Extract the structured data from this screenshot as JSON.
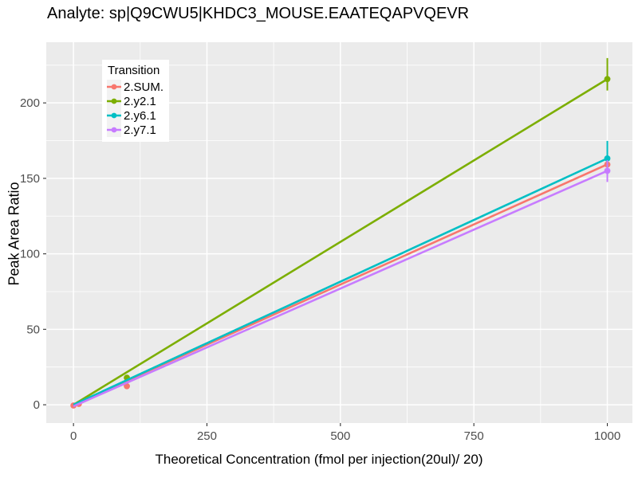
{
  "chart_data": {
    "type": "line",
    "title": "Analyte: sp|Q9CWU5|KHDC3_MOUSE.EAATEQAPVQEVR",
    "xlabel": "Theoretical Concentration (fmol per injection(20ul)/ 20)",
    "ylabel": "Peak Area Ratio",
    "legend_title": "Transition",
    "legend_position": "top-left-inside",
    "grid": "white major+minor on grey panel",
    "panel_color": "#EBEBEB",
    "gridline_color": "#FFFFFF",
    "tick_label_color": "#4D4D4D",
    "tick_mark_color": "#333333",
    "xlim": [
      -51,
      1047
    ],
    "ylim": [
      -12.1,
      240.2
    ],
    "x_ticks": [
      0,
      250,
      500,
      750,
      1000
    ],
    "y_ticks": [
      0,
      50,
      100,
      150,
      200
    ],
    "x_minor_ticks": [
      125,
      375,
      625,
      875
    ],
    "y_minor_ticks": [
      25,
      75,
      125,
      175,
      225
    ],
    "series": [
      {
        "name": "2.SUM.",
        "color": "#F8766D",
        "line": [
          [
            0,
            0
          ],
          [
            1000,
            159.3
          ]
        ],
        "points": [
          [
            0,
            -0.5
          ],
          [
            10,
            0.6
          ],
          [
            100,
            12.3
          ],
          [
            1000,
            159.2
          ]
        ],
        "errorbars": []
      },
      {
        "name": "2.y2.1",
        "color": "#7CAE00",
        "line": [
          [
            0,
            0
          ],
          [
            1000,
            215.8
          ]
        ],
        "points": [
          [
            100,
            17.9
          ],
          [
            1000,
            215.8
          ]
        ],
        "errorbars": [
          [
            1000,
            208.2,
            229.7
          ]
        ]
      },
      {
        "name": "2.y6.1",
        "color": "#00BFC4",
        "line": [
          [
            0,
            0
          ],
          [
            1000,
            163.2
          ]
        ],
        "points": [
          [
            1000,
            163.2
          ]
        ],
        "errorbars": [
          [
            1000,
            152.0,
            174.8
          ]
        ]
      },
      {
        "name": "2.y7.1",
        "color": "#C77CFF",
        "line": [
          [
            0,
            -1
          ],
          [
            1000,
            155.0
          ]
        ],
        "points": [
          [
            1000,
            155.0
          ]
        ],
        "errorbars": [
          [
            1000,
            147.6,
            162.0
          ]
        ]
      }
    ]
  }
}
